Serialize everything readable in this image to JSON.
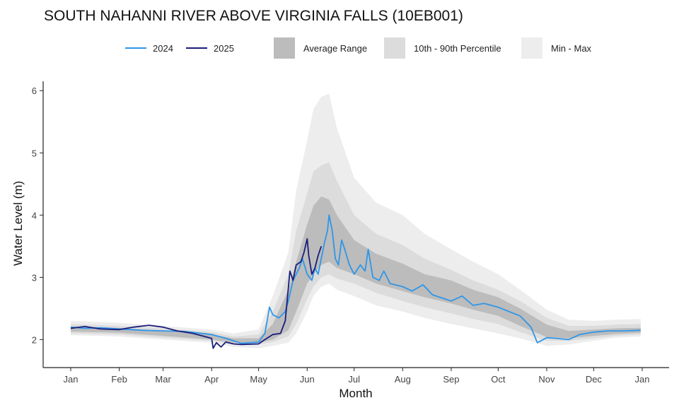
{
  "chart_data": {
    "type": "line",
    "title": "SOUTH NAHANNI RIVER ABOVE VIRGINIA FALLS (10EB001)",
    "xlabel": "Month",
    "ylabel": "Water Level (m)",
    "ylim": [
      1.55,
      6.15
    ],
    "yticks": [
      2,
      3,
      4,
      5,
      6
    ],
    "x_ticks": [
      "Jan",
      "Feb",
      "Mar",
      "Apr",
      "May",
      "Jun",
      "Jul",
      "Aug",
      "Sep",
      "Oct",
      "Nov",
      "Dec",
      "Jan"
    ],
    "grid": false,
    "legend_position": "top",
    "bands": [
      {
        "name": "Min - Max",
        "color": "#ededed",
        "points": [
          [
            "Jan 1",
            2.07,
            2.3
          ],
          [
            "Feb 1",
            2.05,
            2.27
          ],
          [
            "Mar 1",
            2.0,
            2.22
          ],
          [
            "Apr 1",
            1.95,
            2.16
          ],
          [
            "Apr 15",
            1.88,
            2.1
          ],
          [
            "May 1",
            1.86,
            2.16
          ],
          [
            "May 10",
            1.9,
            2.7
          ],
          [
            "May 20",
            1.95,
            3.4
          ],
          [
            "May 25",
            2.1,
            4.4
          ],
          [
            "Jun 1",
            2.45,
            5.2
          ],
          [
            "Jun 5",
            2.7,
            5.7
          ],
          [
            "Jun 10",
            2.85,
            5.9
          ],
          [
            "Jun 15",
            2.9,
            5.95
          ],
          [
            "Jun 20",
            2.8,
            5.4
          ],
          [
            "Jul 1",
            2.7,
            4.6
          ],
          [
            "Jul 15",
            2.55,
            4.2
          ],
          [
            "Aug 1",
            2.45,
            4.0
          ],
          [
            "Aug 15",
            2.35,
            3.7
          ],
          [
            "Sep 1",
            2.25,
            3.45
          ],
          [
            "Sep 15",
            2.18,
            3.25
          ],
          [
            "Oct 1",
            2.1,
            3.05
          ],
          [
            "Oct 15",
            2.02,
            2.8
          ],
          [
            "Nov 1",
            1.9,
            2.48
          ],
          [
            "Nov 15",
            1.92,
            2.32
          ],
          [
            "Dec 1",
            1.98,
            2.3
          ],
          [
            "Dec 15",
            2.03,
            2.32
          ],
          [
            "Dec 31",
            2.05,
            2.33
          ]
        ]
      },
      {
        "name": "10th - 90th Percentile",
        "color": "#dcdcdc",
        "points": [
          [
            "Jan 1",
            2.1,
            2.25
          ],
          [
            "Feb 1",
            2.08,
            2.22
          ],
          [
            "Mar 1",
            2.03,
            2.18
          ],
          [
            "Apr 1",
            1.98,
            2.12
          ],
          [
            "Apr 15",
            1.92,
            2.05
          ],
          [
            "May 1",
            1.92,
            2.08
          ],
          [
            "May 10",
            1.96,
            2.45
          ],
          [
            "May 20",
            2.05,
            3.05
          ],
          [
            "May 25",
            2.25,
            3.75
          ],
          [
            "Jun 1",
            2.65,
            4.35
          ],
          [
            "Jun 5",
            2.85,
            4.7
          ],
          [
            "Jun 10",
            3.0,
            4.8
          ],
          [
            "Jun 15",
            3.05,
            4.85
          ],
          [
            "Jun 20",
            2.98,
            4.55
          ],
          [
            "Jul 1",
            2.9,
            4.0
          ],
          [
            "Jul 15",
            2.75,
            3.7
          ],
          [
            "Aug 1",
            2.62,
            3.52
          ],
          [
            "Aug 15",
            2.52,
            3.3
          ],
          [
            "Sep 1",
            2.42,
            3.12
          ],
          [
            "Sep 15",
            2.33,
            2.95
          ],
          [
            "Oct 1",
            2.25,
            2.8
          ],
          [
            "Oct 15",
            2.12,
            2.62
          ],
          [
            "Nov 1",
            1.98,
            2.35
          ],
          [
            "Nov 15",
            1.98,
            2.22
          ],
          [
            "Dec 1",
            2.02,
            2.22
          ],
          [
            "Dec 15",
            2.06,
            2.24
          ],
          [
            "Dec 31",
            2.08,
            2.25
          ]
        ]
      },
      {
        "name": "Average Range",
        "color": "#bcbcbc",
        "points": [
          [
            "Jan 1",
            2.13,
            2.21
          ],
          [
            "Feb 1",
            2.11,
            2.19
          ],
          [
            "Mar 1",
            2.06,
            2.14
          ],
          [
            "Apr 1",
            2.0,
            2.08
          ],
          [
            "Apr 15",
            1.95,
            2.02
          ],
          [
            "May 1",
            1.95,
            2.02
          ],
          [
            "May 10",
            2.0,
            2.25
          ],
          [
            "May 20",
            2.15,
            2.8
          ],
          [
            "May 25",
            2.45,
            3.25
          ],
          [
            "Jun 1",
            2.9,
            3.85
          ],
          [
            "Jun 5",
            3.05,
            4.15
          ],
          [
            "Jun 10",
            3.2,
            4.3
          ],
          [
            "Jun 15",
            3.25,
            4.25
          ],
          [
            "Jun 20",
            3.15,
            4.0
          ],
          [
            "Jul 1",
            3.05,
            3.6
          ],
          [
            "Jul 15",
            2.9,
            3.38
          ],
          [
            "Aug 1",
            2.78,
            3.22
          ],
          [
            "Aug 15",
            2.68,
            3.05
          ],
          [
            "Sep 1",
            2.58,
            2.95
          ],
          [
            "Sep 15",
            2.48,
            2.8
          ],
          [
            "Oct 1",
            2.38,
            2.68
          ],
          [
            "Oct 15",
            2.22,
            2.5
          ],
          [
            "Nov 1",
            2.04,
            2.24
          ],
          [
            "Nov 15",
            2.02,
            2.14
          ],
          [
            "Dec 1",
            2.06,
            2.16
          ],
          [
            "Dec 15",
            2.09,
            2.18
          ],
          [
            "Dec 31",
            2.11,
            2.19
          ]
        ]
      }
    ],
    "series": [
      {
        "name": "2024",
        "color": "#2e96e8",
        "points": [
          [
            "Jan 1",
            2.2
          ],
          [
            "Jan 10",
            2.18
          ],
          [
            "Jan 20",
            2.19
          ],
          [
            "Feb 1",
            2.17
          ],
          [
            "Feb 15",
            2.15
          ],
          [
            "Mar 1",
            2.14
          ],
          [
            "Mar 15",
            2.13
          ],
          [
            "Apr 1",
            2.08
          ],
          [
            "Apr 10",
            2.02
          ],
          [
            "Apr 20",
            1.94
          ],
          [
            "May 1",
            1.96
          ],
          [
            "May 5",
            2.1
          ],
          [
            "May 8",
            2.52
          ],
          [
            "May 10",
            2.4
          ],
          [
            "May 14",
            2.35
          ],
          [
            "May 18",
            2.45
          ],
          [
            "May 20",
            2.62
          ],
          [
            "May 23",
            2.95
          ],
          [
            "May 27",
            3.15
          ],
          [
            "May 29",
            3.3
          ],
          [
            "Jun 1",
            3.05
          ],
          [
            "Jun 4",
            2.95
          ],
          [
            "Jun 6",
            3.15
          ],
          [
            "Jun 8",
            3.05
          ],
          [
            "Jun 10",
            3.3
          ],
          [
            "Jun 12",
            3.55
          ],
          [
            "Jun 14",
            3.75
          ],
          [
            "Jun 15",
            4.0
          ],
          [
            "Jun 17",
            3.75
          ],
          [
            "Jun 19",
            3.3
          ],
          [
            "Jun 21",
            3.2
          ],
          [
            "Jun 23",
            3.6
          ],
          [
            "Jun 25",
            3.45
          ],
          [
            "Jun 28",
            3.2
          ],
          [
            "Jul 1",
            3.05
          ],
          [
            "Jul 5",
            3.2
          ],
          [
            "Jul 8",
            3.1
          ],
          [
            "Jul 10",
            3.45
          ],
          [
            "Jul 13",
            3.0
          ],
          [
            "Jul 17",
            2.95
          ],
          [
            "Jul 20",
            3.1
          ],
          [
            "Jul 24",
            2.9
          ],
          [
            "Aug 1",
            2.85
          ],
          [
            "Aug 7",
            2.78
          ],
          [
            "Aug 14",
            2.88
          ],
          [
            "Aug 20",
            2.72
          ],
          [
            "Sep 1",
            2.62
          ],
          [
            "Sep 8",
            2.7
          ],
          [
            "Sep 15",
            2.55
          ],
          [
            "Sep 22",
            2.58
          ],
          [
            "Oct 1",
            2.52
          ],
          [
            "Oct 8",
            2.45
          ],
          [
            "Oct 15",
            2.38
          ],
          [
            "Oct 22",
            2.2
          ],
          [
            "Oct 26",
            1.95
          ],
          [
            "Nov 1",
            2.03
          ],
          [
            "Nov 7",
            2.02
          ],
          [
            "Nov 15",
            2.0
          ],
          [
            "Nov 22",
            2.08
          ],
          [
            "Dec 1",
            2.12
          ],
          [
            "Dec 10",
            2.14
          ],
          [
            "Dec 20",
            2.14
          ],
          [
            "Dec 31",
            2.15
          ]
        ]
      },
      {
        "name": "2025",
        "color": "#1b1d7a",
        "points": [
          [
            "Jan 1",
            2.18
          ],
          [
            "Jan 10",
            2.21
          ],
          [
            "Jan 20",
            2.17
          ],
          [
            "Feb 1",
            2.16
          ],
          [
            "Feb 10",
            2.2
          ],
          [
            "Feb 20",
            2.23
          ],
          [
            "Mar 1",
            2.2
          ],
          [
            "Mar 10",
            2.14
          ],
          [
            "Mar 20",
            2.1
          ],
          [
            "Apr 1",
            2.02
          ],
          [
            "Apr 2",
            1.86
          ],
          [
            "Apr 4",
            1.95
          ],
          [
            "Apr 7",
            1.88
          ],
          [
            "Apr 10",
            1.96
          ],
          [
            "Apr 15",
            1.93
          ],
          [
            "Apr 20",
            1.92
          ],
          [
            "May 1",
            1.93
          ],
          [
            "May 5",
            2.0
          ],
          [
            "May 10",
            2.08
          ],
          [
            "May 15",
            2.1
          ],
          [
            "May 18",
            2.3
          ],
          [
            "May 21",
            3.1
          ],
          [
            "May 23",
            2.95
          ],
          [
            "May 25",
            3.2
          ],
          [
            "May 28",
            3.25
          ],
          [
            "May 30",
            3.4
          ],
          [
            "Jun 1",
            3.62
          ],
          [
            "Jun 2",
            3.35
          ],
          [
            "Jun 4",
            3.05
          ],
          [
            "Jun 6",
            3.15
          ],
          [
            "Jun 8",
            3.35
          ],
          [
            "Jun 10",
            3.5
          ]
        ]
      }
    ]
  },
  "legend": {
    "lines": [
      {
        "label": "2024",
        "color": "#2e96e8"
      },
      {
        "label": "2025",
        "color": "#1b1d7a"
      }
    ],
    "fills": [
      {
        "label": "Average Range",
        "color": "#bcbcbc"
      },
      {
        "label": "10th - 90th Percentile",
        "color": "#dcdcdc"
      },
      {
        "label": "Min - Max",
        "color": "#ededed"
      }
    ]
  }
}
